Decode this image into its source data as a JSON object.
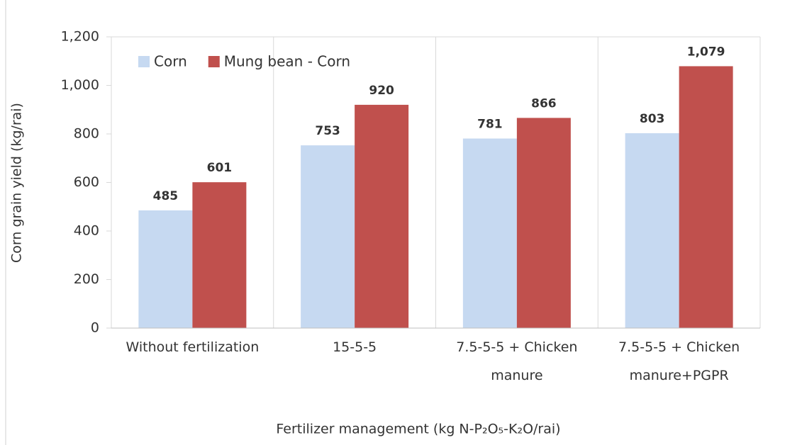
{
  "chart_data": {
    "type": "bar",
    "categories": [
      "Without fertilization",
      "15-5-5",
      "7.5-5-5 + Chicken manure",
      "7.5-5-5 + Chicken manure+PGPR"
    ],
    "series": [
      {
        "name": "Corn",
        "color": "#c6d9f1",
        "values": [
          485,
          753,
          781,
          803
        ],
        "value_labels": [
          "485",
          "753",
          "781",
          "803"
        ]
      },
      {
        "name": "Mung bean - Corn",
        "color": "#c0504d",
        "values": [
          601,
          920,
          866,
          1079
        ],
        "value_labels": [
          "601",
          "920",
          "866",
          "1,079"
        ]
      }
    ],
    "xlabel": "Fertilizer management (kg N-P₂O₅-K₂O/rai)",
    "ylabel": "Corn grain yield (kg/rai)",
    "ylim": [
      0,
      1200
    ],
    "yticks": [
      0,
      200,
      400,
      600,
      800,
      {
        "value": 1000,
        "label": "1,000"
      },
      {
        "value": 1200,
        "label": "1,200"
      }
    ],
    "legend": "upper left"
  }
}
